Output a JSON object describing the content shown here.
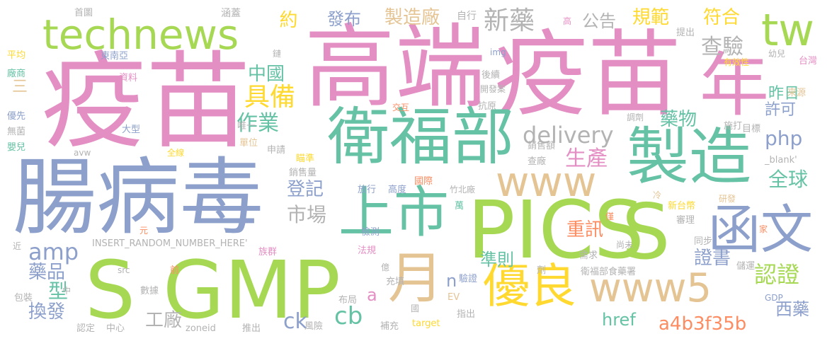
{
  "palette": {
    "pink": "#e48fc4",
    "green": "#a6d854",
    "blue": "#8da0cb",
    "teal": "#66c2a5",
    "tan": "#e5c494",
    "yellow": "#ffd92f",
    "gray": "#b3b3b3",
    "orange": "#fc8d62"
  },
  "words": {
    "yimiao": "疫苗",
    "gaoduan": "高端",
    "yimiao2": "疫苗",
    "nian": "年",
    "changbingdu": "腸病毒",
    "weifubu": "衛福部",
    "zhizao": "製造",
    "pics": "PICS",
    "gmp": "GMP",
    "s1": "S",
    "s2": "S",
    "technews": "technews",
    "tw": "tw",
    "www": "www",
    "www5": "www5",
    "shangshi": "上市",
    "hanwen": "函文",
    "yue": "月",
    "youliang": "優良",
    "delivery": "delivery",
    "php": "php",
    "juzhen": "具備",
    "zhongguo": "中國",
    "fabu": "發布",
    "zhizaochang": "製造廠",
    "xinyao": "新藥",
    "gonggao": "公告",
    "guifan": "規範",
    "fuhe": "符合",
    "chayan": "查驗",
    "yue2": "約",
    "zuoye": "作業",
    "yaowu": "藥物",
    "zuori": "昨日",
    "xuke": "許可",
    "shengchan": "生產",
    "quanqiu": "全球",
    "dengji": "登記",
    "shichang": "市場",
    "zhongxun": "重訊",
    "amp": "amp",
    "yaopin": "藥品",
    "xing": "型",
    "zhunze": "準則",
    "zhengshu": "證書",
    "renzheng": "認證",
    "huanfa": "換發",
    "gongchang": "工廠",
    "cb": "cb",
    "ck": "ck",
    "href": "href",
    "hash": "a4b3f35b",
    "xiyao": "西藥",
    "a": "a",
    "n": "n",
    "san": "三",
    "shoutu": "首圖",
    "hangai": "涵蓋",
    "zixing": "自行",
    "gao": "高",
    "tichu": "提出",
    "img": "img",
    "youer": "幼兒",
    "taiwan": "台灣",
    "pingjun": "平均",
    "dongnanya": "東南亞",
    "lian": "鏈",
    "houxu": "後續",
    "youxiaoxing": "有效性",
    "changshang": "廠商",
    "ziliao": "資料",
    "kaifaan": "開發案",
    "laiyuan": "來源",
    "youxian": "優先",
    "jiaohu": "交互",
    "kangyuan": "抗原",
    "wujun": "無菌",
    "dayin": "大型",
    "weiyi": "唯一",
    "tiaoji": "調劑",
    "shida": "施打",
    "mubiao": "目標",
    "yinger": "嬰兒",
    "danwei": "單位",
    "shenqing": "申請",
    "xiaoshoue": "銷售額",
    "avw": "avw",
    "quanxian": "全線",
    "miaozhun": "瞄準",
    "chachang": "查廠",
    "blank": "_blank'",
    "xiaoshouliang": "銷售量",
    "fangxing": "放行",
    "gaodu": "高度",
    "guoji": "國際",
    "zhubeichang": "竹北廠",
    "leng": "冷",
    "wan": "萬",
    "xintaibi": "新台幣",
    "yanfa": "研發",
    "jin": "僅",
    "shenli": "審理",
    "yuan": "元",
    "jia": "家",
    "insert": "INSERT_RANDOM_NUMBER_HERE'",
    "jiance": "檢測",
    "jin2": "近",
    "shangwei": "尚未",
    "tongbu": "同步",
    "zuqun": "族群",
    "fagui": "法規",
    "xuqiu": "需求",
    "src": "src",
    "qian": "前",
    "yi": "億",
    "ji": "劑",
    "weifubushiyao": "衛福部食藥署",
    "chuyun": "儲運",
    "zhong": "中",
    "yanzheng": "驗證",
    "baozhuang": "包裝",
    "shuju": "數據",
    "chongtian": "充填",
    "buju": "布局",
    "ev": "EV",
    "gdp": "GDP",
    "guo": "國",
    "zhichu": "指出",
    "rending": "認定",
    "zhongxin": "中心",
    "zoneid": "zoneid",
    "tuichu": "推出",
    "fengxian": "風險",
    "buchong": "補充",
    "target": "target"
  }
}
